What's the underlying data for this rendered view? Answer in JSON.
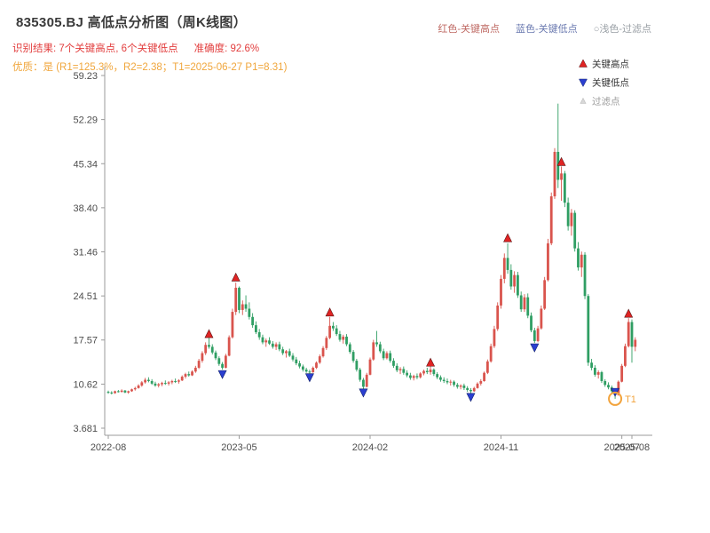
{
  "header": {
    "title": "835305.BJ 高低点分析图（周K线图）",
    "legend_items": [
      {
        "label": "红色-关键高点",
        "color": "#bf6a64"
      },
      {
        "label": "蓝色-关键低点",
        "color": "#6b7ab0"
      },
      {
        "label": "○浅色-过滤点",
        "color": "#9aa0a6"
      }
    ],
    "result": "识别结果: 7个关键高点, 6个关键低点",
    "accuracy": "准确度: 92.6%",
    "result_color": "#e23d3d",
    "quality": "优质：是 (R1=125.3%，R2=2.38；T1=2025-06-27 P1=8.31)",
    "quality_color": "#f0a63c"
  },
  "legend": {
    "items": [
      {
        "label": "关键高点",
        "marker": "triangle-up",
        "color": "#e02424",
        "text_color": "#333333"
      },
      {
        "label": "关键低点",
        "marker": "triangle-down",
        "color": "#2b3fd0",
        "text_color": "#333333"
      },
      {
        "label": "过滤点",
        "marker": "triangle-small",
        "color": "#d8d8d8",
        "text_color": "#9a9a9a"
      }
    ]
  },
  "chart_data": {
    "type": "candlestick",
    "symbol": "835305.BJ",
    "interval": "周K线",
    "ylim": [
      3.681,
      59.23
    ],
    "up_color": "#d9544d",
    "down_color": "#2f9e63",
    "key_high_color": "#e02424",
    "key_low_color": "#2b3fd0",
    "axis_color": "#9b9b9b",
    "tick_label_color": "#4d4d4d",
    "y_ticks": [
      {
        "label": "59.23",
        "value": 59.23
      },
      {
        "label": "52.29",
        "value": 52.29
      },
      {
        "label": "45.34",
        "value": 45.34
      },
      {
        "label": "38.40",
        "value": 38.4
      },
      {
        "label": "31.46",
        "value": 31.46
      },
      {
        "label": "24.51",
        "value": 24.51
      },
      {
        "label": "17.57",
        "value": 17.57
      },
      {
        "label": "10.62",
        "value": 10.62
      },
      {
        "label": "3.681",
        "value": 3.681
      }
    ],
    "x_ticks": [
      {
        "label": "2022-08",
        "week": 0
      },
      {
        "label": "2023-05",
        "week": 39
      },
      {
        "label": "2024-02",
        "week": 78
      },
      {
        "label": "2024-11",
        "week": 117
      },
      {
        "label": "2025-07",
        "week": 153
      },
      {
        "label": "2025-08",
        "week": 156
      }
    ],
    "candles": [
      [
        9.4,
        9.6,
        9.1,
        9.3
      ],
      [
        9.3,
        9.5,
        9.0,
        9.2
      ],
      [
        9.2,
        9.6,
        9.1,
        9.5
      ],
      [
        9.5,
        9.7,
        9.3,
        9.4
      ],
      [
        9.4,
        9.8,
        9.3,
        9.6
      ],
      [
        9.6,
        9.7,
        9.2,
        9.3
      ],
      [
        9.3,
        9.6,
        9.1,
        9.5
      ],
      [
        9.5,
        9.9,
        9.4,
        9.8
      ],
      [
        9.8,
        10.2,
        9.6,
        10.0
      ],
      [
        10.0,
        10.6,
        9.9,
        10.4
      ],
      [
        10.4,
        11.1,
        10.2,
        10.9
      ],
      [
        10.9,
        11.6,
        10.7,
        11.3
      ],
      [
        11.3,
        11.7,
        10.9,
        11.1
      ],
      [
        11.1,
        11.4,
        10.5,
        10.7
      ],
      [
        10.7,
        11.0,
        10.2,
        10.4
      ],
      [
        10.4,
        10.8,
        10.1,
        10.6
      ],
      [
        10.6,
        11.0,
        10.3,
        10.8
      ],
      [
        10.8,
        11.2,
        10.5,
        10.7
      ],
      [
        10.7,
        11.1,
        10.4,
        10.9
      ],
      [
        10.9,
        11.3,
        10.6,
        11.1
      ],
      [
        11.1,
        11.5,
        10.8,
        11.0
      ],
      [
        11.0,
        11.4,
        10.7,
        11.2
      ],
      [
        11.2,
        12.0,
        11.1,
        11.8
      ],
      [
        11.8,
        12.4,
        11.5,
        12.2
      ],
      [
        12.2,
        12.6,
        11.8,
        12.0
      ],
      [
        12.0,
        12.8,
        11.9,
        12.6
      ],
      [
        12.6,
        13.5,
        12.4,
        13.2
      ],
      [
        13.2,
        14.6,
        13.0,
        14.3
      ],
      [
        14.3,
        15.8,
        14.0,
        15.5
      ],
      [
        15.5,
        17.2,
        15.2,
        16.8
      ],
      [
        16.8,
        17.9,
        16.2,
        16.5
      ],
      [
        16.5,
        16.9,
        15.3,
        15.6
      ],
      [
        15.6,
        15.9,
        14.4,
        14.7
      ],
      [
        14.7,
        15.0,
        13.5,
        13.8
      ],
      [
        13.8,
        14.1,
        12.9,
        13.2
      ],
      [
        13.2,
        15.4,
        13.1,
        15.1
      ],
      [
        15.1,
        18.3,
        15.0,
        18.0
      ],
      [
        18.0,
        22.5,
        17.8,
        22.0
      ],
      [
        22.0,
        26.6,
        21.5,
        25.8
      ],
      [
        25.8,
        26.0,
        21.8,
        22.3
      ],
      [
        22.3,
        23.8,
        21.5,
        23.2
      ],
      [
        23.2,
        24.6,
        22.0,
        22.5
      ],
      [
        22.5,
        23.5,
        20.8,
        21.2
      ],
      [
        21.2,
        21.8,
        19.5,
        19.9
      ],
      [
        19.9,
        20.5,
        18.5,
        18.8
      ],
      [
        18.8,
        19.3,
        17.6,
        18.0
      ],
      [
        18.0,
        18.4,
        16.9,
        17.2
      ],
      [
        17.2,
        17.8,
        16.5,
        17.5
      ],
      [
        17.5,
        18.0,
        16.8,
        17.0
      ],
      [
        17.0,
        17.4,
        16.2,
        16.5
      ],
      [
        16.5,
        17.2,
        16.0,
        16.9
      ],
      [
        16.9,
        17.3,
        15.8,
        16.1
      ],
      [
        16.1,
        16.5,
        15.2,
        15.5
      ],
      [
        15.5,
        16.0,
        14.8,
        15.8
      ],
      [
        15.8,
        16.2,
        14.9,
        15.1
      ],
      [
        15.1,
        15.5,
        14.2,
        14.5
      ],
      [
        14.5,
        14.9,
        13.6,
        13.9
      ],
      [
        13.9,
        14.3,
        13.1,
        13.4
      ],
      [
        13.4,
        13.7,
        12.6,
        12.9
      ],
      [
        12.9,
        13.2,
        12.4,
        12.6
      ],
      [
        12.6,
        12.9,
        12.3,
        12.5
      ],
      [
        12.5,
        13.4,
        12.4,
        13.2
      ],
      [
        13.2,
        14.2,
        13.0,
        14.0
      ],
      [
        14.0,
        15.3,
        13.8,
        15.0
      ],
      [
        15.0,
        16.6,
        14.8,
        16.3
      ],
      [
        16.3,
        18.2,
        16.0,
        17.9
      ],
      [
        17.9,
        21.2,
        17.7,
        19.8
      ],
      [
        19.8,
        20.4,
        19.0,
        19.4
      ],
      [
        19.4,
        19.9,
        18.2,
        18.5
      ],
      [
        18.5,
        19.0,
        17.3,
        17.6
      ],
      [
        17.6,
        18.4,
        17.0,
        18.1
      ],
      [
        18.1,
        18.5,
        16.6,
        16.9
      ],
      [
        16.9,
        17.2,
        15.4,
        15.7
      ],
      [
        15.7,
        16.0,
        14.0,
        14.3
      ],
      [
        14.3,
        14.6,
        12.6,
        12.9
      ],
      [
        12.9,
        13.2,
        11.0,
        11.3
      ],
      [
        11.3,
        11.6,
        9.9,
        10.2
      ],
      [
        10.2,
        12.4,
        10.1,
        12.1
      ],
      [
        12.1,
        14.8,
        12.0,
        14.5
      ],
      [
        14.5,
        17.6,
        14.3,
        17.2
      ],
      [
        17.2,
        19.0,
        16.5,
        16.9
      ],
      [
        16.9,
        17.3,
        15.5,
        15.8
      ],
      [
        15.8,
        16.2,
        14.4,
        14.7
      ],
      [
        14.7,
        15.8,
        14.5,
        15.5
      ],
      [
        15.5,
        15.9,
        14.0,
        14.3
      ],
      [
        14.3,
        14.7,
        13.2,
        13.5
      ],
      [
        13.5,
        13.9,
        12.5,
        12.8
      ],
      [
        12.8,
        13.3,
        12.2,
        13.0
      ],
      [
        13.0,
        13.4,
        12.1,
        12.4
      ],
      [
        12.4,
        12.8,
        11.7,
        12.0
      ],
      [
        12.0,
        12.4,
        11.3,
        11.6
      ],
      [
        11.6,
        12.1,
        11.2,
        11.9
      ],
      [
        11.9,
        12.3,
        11.4,
        11.7
      ],
      [
        11.7,
        12.5,
        11.5,
        12.3
      ],
      [
        12.3,
        12.9,
        12.0,
        12.7
      ],
      [
        12.7,
        13.2,
        12.2,
        12.5
      ],
      [
        12.5,
        13.4,
        12.1,
        12.9
      ],
      [
        12.9,
        13.1,
        11.9,
        12.2
      ],
      [
        12.2,
        12.5,
        11.4,
        11.7
      ],
      [
        11.7,
        12.0,
        11.0,
        11.3
      ],
      [
        11.3,
        11.7,
        10.8,
        11.1
      ],
      [
        11.1,
        11.5,
        10.6,
        10.9
      ],
      [
        10.9,
        11.3,
        10.4,
        11.0
      ],
      [
        11.0,
        11.2,
        10.2,
        10.5
      ],
      [
        10.5,
        10.8,
        9.9,
        10.2
      ],
      [
        10.2,
        10.6,
        9.8,
        10.4
      ],
      [
        10.4,
        10.7,
        9.7,
        10.0
      ],
      [
        10.0,
        10.3,
        9.4,
        9.7
      ],
      [
        9.7,
        10.0,
        9.2,
        9.5
      ],
      [
        9.5,
        10.2,
        9.4,
        10.0
      ],
      [
        10.0,
        10.9,
        9.9,
        10.7
      ],
      [
        10.7,
        11.4,
        10.4,
        11.1
      ],
      [
        11.1,
        12.6,
        11.0,
        12.4
      ],
      [
        12.4,
        14.5,
        12.2,
        14.2
      ],
      [
        14.2,
        17.0,
        14.0,
        16.6
      ],
      [
        16.6,
        19.8,
        16.3,
        19.3
      ],
      [
        19.3,
        23.5,
        19.0,
        23.0
      ],
      [
        23.0,
        27.8,
        22.5,
        27.2
      ],
      [
        27.2,
        31.2,
        26.5,
        30.5
      ],
      [
        30.5,
        32.8,
        28.0,
        28.6
      ],
      [
        28.6,
        29.5,
        25.5,
        26.0
      ],
      [
        26.0,
        28.4,
        25.0,
        27.8
      ],
      [
        27.8,
        28.3,
        24.2,
        24.6
      ],
      [
        24.6,
        25.2,
        22.0,
        22.4
      ],
      [
        22.4,
        24.8,
        22.0,
        24.3
      ],
      [
        24.3,
        24.9,
        21.0,
        21.4
      ],
      [
        21.4,
        21.9,
        18.8,
        19.1
      ],
      [
        19.1,
        19.5,
        17.1,
        17.4
      ],
      [
        17.4,
        19.8,
        17.2,
        19.4
      ],
      [
        19.4,
        23.0,
        19.2,
        22.5
      ],
      [
        22.5,
        27.5,
        22.3,
        27.0
      ],
      [
        27.0,
        33.5,
        26.8,
        32.8
      ],
      [
        32.8,
        40.8,
        32.5,
        40.2
      ],
      [
        40.2,
        47.8,
        39.8,
        47.2
      ],
      [
        47.2,
        54.8,
        41.5,
        42.8
      ],
      [
        42.8,
        44.9,
        39.5,
        43.8
      ],
      [
        43.8,
        44.2,
        38.5,
        39.2
      ],
      [
        39.2,
        40.0,
        34.8,
        35.5
      ],
      [
        35.5,
        38.2,
        34.0,
        37.6
      ],
      [
        37.6,
        38.0,
        31.5,
        32.0
      ],
      [
        32.0,
        33.0,
        28.5,
        29.0
      ],
      [
        29.0,
        31.5,
        27.5,
        31.0
      ],
      [
        31.0,
        31.4,
        24.0,
        24.5
      ],
      [
        24.5,
        24.8,
        13.5,
        14.0
      ],
      [
        14.0,
        14.6,
        12.8,
        13.2
      ],
      [
        13.2,
        13.6,
        11.8,
        12.1
      ],
      [
        12.1,
        12.8,
        11.5,
        12.5
      ],
      [
        12.5,
        12.7,
        10.8,
        11.1
      ],
      [
        11.1,
        11.4,
        10.2,
        10.5
      ],
      [
        10.5,
        10.9,
        9.8,
        10.1
      ],
      [
        10.1,
        10.4,
        9.2,
        9.5
      ],
      [
        9.5,
        9.8,
        8.31,
        8.9
      ],
      [
        8.9,
        11.2,
        8.8,
        11.0
      ],
      [
        11.0,
        13.8,
        10.9,
        13.5
      ],
      [
        13.5,
        17.0,
        13.3,
        16.6
      ],
      [
        16.6,
        21.0,
        16.4,
        20.4
      ],
      [
        20.4,
        20.8,
        14.0,
        16.5
      ],
      [
        16.5,
        18.0,
        15.8,
        17.6
      ]
    ],
    "key_highs": [
      {
        "week": 30,
        "price": 18.5
      },
      {
        "week": 38,
        "price": 27.4
      },
      {
        "week": 66,
        "price": 21.9
      },
      {
        "week": 96,
        "price": 14.0
      },
      {
        "week": 119,
        "price": 33.6
      },
      {
        "week": 135,
        "price": 45.6
      },
      {
        "week": 155,
        "price": 21.7
      }
    ],
    "key_lows": [
      {
        "week": 34,
        "price": 12.2
      },
      {
        "week": 60,
        "price": 11.7
      },
      {
        "week": 76,
        "price": 9.3
      },
      {
        "week": 108,
        "price": 8.6
      },
      {
        "week": 127,
        "price": 16.4
      },
      {
        "week": 151,
        "price": 9.4
      }
    ],
    "t1_marker": {
      "week": 151,
      "price": 8.31,
      "label": "T1",
      "color": "#f2a33c"
    }
  }
}
